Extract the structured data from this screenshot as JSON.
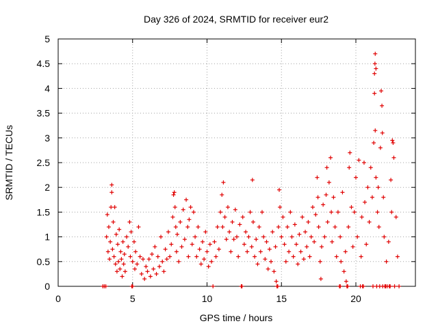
{
  "chart_data": {
    "type": "scatter",
    "title": "Day 326 of 2024, SRMTID for receiver eur2",
    "xlabel": "GPS time / hours",
    "ylabel": "SRMTID / TECUs",
    "xlim": [
      0,
      24
    ],
    "ylim": [
      0,
      5
    ],
    "xticks": [
      0,
      5,
      10,
      15,
      20
    ],
    "xtick_labels": [
      "0",
      "5",
      "10",
      "15",
      "20"
    ],
    "yticks": [
      0,
      0.5,
      1,
      1.5,
      2,
      2.5,
      3,
      3.5,
      4,
      4.5,
      5
    ],
    "ytick_labels": [
      "0",
      "0.5",
      "1",
      "1.5",
      "2",
      "2.5",
      "3",
      "3.5",
      "4",
      "4.5",
      "5"
    ],
    "grid": true,
    "marker": "+",
    "series": [
      {
        "name": "SRMTID",
        "color": "#e00000",
        "points": [
          [
            3.2,
            0.0
          ],
          [
            3.25,
            1.0
          ],
          [
            3.3,
            1.45
          ],
          [
            3.35,
            0.7
          ],
          [
            3.4,
            1.2
          ],
          [
            3.45,
            0.55
          ],
          [
            3.5,
            0.9
          ],
          [
            3.55,
            1.6
          ],
          [
            3.6,
            2.05
          ],
          [
            3.6,
            1.9
          ],
          [
            3.65,
            0.75
          ],
          [
            3.7,
            1.3
          ],
          [
            3.75,
            0.6
          ],
          [
            3.8,
            1.6
          ],
          [
            3.85,
            0.45
          ],
          [
            3.9,
            1.05
          ],
          [
            3.95,
            0.3
          ],
          [
            4.0,
            0.85
          ],
          [
            4.05,
            0.5
          ],
          [
            4.1,
            1.15
          ],
          [
            4.15,
            0.35
          ],
          [
            4.2,
            0.7
          ],
          [
            4.25,
            0.55
          ],
          [
            4.3,
            0.2
          ],
          [
            4.35,
            0.9
          ],
          [
            4.4,
            0.45
          ],
          [
            4.45,
            0.65
          ],
          [
            4.5,
            0.3
          ],
          [
            4.6,
            1.0
          ],
          [
            4.7,
            0.8
          ],
          [
            4.8,
            1.3
          ],
          [
            4.85,
            0.6
          ],
          [
            4.9,
            1.1
          ],
          [
            5.0,
            0.0
          ],
          [
            5.0,
            0.5
          ],
          [
            5.1,
            0.9
          ],
          [
            5.15,
            0.35
          ],
          [
            5.2,
            0.7
          ],
          [
            5.3,
            0.45
          ],
          [
            5.4,
            1.2
          ],
          [
            5.5,
            0.6
          ],
          [
            5.6,
            0.25
          ],
          [
            5.7,
            0.55
          ],
          [
            5.8,
            0.15
          ],
          [
            5.9,
            0.4
          ],
          [
            6.0,
            0.3
          ],
          [
            6.1,
            0.55
          ],
          [
            6.2,
            0.2
          ],
          [
            6.3,
            0.65
          ],
          [
            6.4,
            0.35
          ],
          [
            6.5,
            0.8
          ],
          [
            6.6,
            0.25
          ],
          [
            6.7,
            0.6
          ],
          [
            6.8,
            0.4
          ],
          [
            6.9,
            1.0
          ],
          [
            7.0,
            0.5
          ],
          [
            7.1,
            0.3
          ],
          [
            7.2,
            0.75
          ],
          [
            7.3,
            0.55
          ],
          [
            7.4,
            1.1
          ],
          [
            7.5,
            0.6
          ],
          [
            7.6,
            0.85
          ],
          [
            7.7,
            1.4
          ],
          [
            7.75,
            1.85
          ],
          [
            7.8,
            1.9
          ],
          [
            7.85,
            1.6
          ],
          [
            7.9,
            1.2
          ],
          [
            7.95,
            0.7
          ],
          [
            8.0,
            1.05
          ],
          [
            8.1,
            0.5
          ],
          [
            8.2,
            1.3
          ],
          [
            8.3,
            0.8
          ],
          [
            8.4,
            1.55
          ],
          [
            8.5,
            0.95
          ],
          [
            8.6,
            1.75
          ],
          [
            8.7,
            1.2
          ],
          [
            8.75,
            0.6
          ],
          [
            8.8,
            1.35
          ],
          [
            8.9,
            1.6
          ],
          [
            9.0,
            0.85
          ],
          [
            9.1,
            1.5
          ],
          [
            9.2,
            1.0
          ],
          [
            9.3,
            0.6
          ],
          [
            9.4,
            1.2
          ],
          [
            9.5,
            0.75
          ],
          [
            9.6,
            0.45
          ],
          [
            9.7,
            0.9
          ],
          [
            9.8,
            0.55
          ],
          [
            9.9,
            1.1
          ],
          [
            10.0,
            0.7
          ],
          [
            10.1,
            0.4
          ],
          [
            10.2,
            0.85
          ],
          [
            10.3,
            0.5
          ],
          [
            10.4,
            0.0
          ],
          [
            10.5,
            0.9
          ],
          [
            10.6,
            0.6
          ],
          [
            10.7,
            1.2
          ],
          [
            10.8,
            0.75
          ],
          [
            10.9,
            1.5
          ],
          [
            11.0,
            1.85
          ],
          [
            11.05,
            1.2
          ],
          [
            11.1,
            2.1
          ],
          [
            11.2,
            1.4
          ],
          [
            11.3,
            0.95
          ],
          [
            11.4,
            1.6
          ],
          [
            11.5,
            1.1
          ],
          [
            11.6,
            0.7
          ],
          [
            11.7,
            1.3
          ],
          [
            11.8,
            0.95
          ],
          [
            11.9,
            1.55
          ],
          [
            12.0,
            1.0
          ],
          [
            12.1,
            0.6
          ],
          [
            12.2,
            1.25
          ],
          [
            12.3,
            0.0
          ],
          [
            12.4,
            1.4
          ],
          [
            12.5,
            0.85
          ],
          [
            12.6,
            1.1
          ],
          [
            12.7,
            0.7
          ],
          [
            12.8,
            1.0
          ],
          [
            12.9,
            1.5
          ],
          [
            13.0,
            0.8
          ],
          [
            13.05,
            2.15
          ],
          [
            13.1,
            1.3
          ],
          [
            13.2,
            0.6
          ],
          [
            13.3,
            0.95
          ],
          [
            13.4,
            0.45
          ],
          [
            13.5,
            1.2
          ],
          [
            13.6,
            0.7
          ],
          [
            13.7,
            1.5
          ],
          [
            13.8,
            1.0
          ],
          [
            13.9,
            0.55
          ],
          [
            14.0,
            0.9
          ],
          [
            14.1,
            0.35
          ],
          [
            14.2,
            0.75
          ],
          [
            14.3,
            0.5
          ],
          [
            14.4,
            1.1
          ],
          [
            14.5,
            0.3
          ],
          [
            14.6,
            0.8
          ],
          [
            14.65,
            0.1
          ],
          [
            14.7,
            0.0
          ],
          [
            14.8,
            1.2
          ],
          [
            14.85,
            1.95
          ],
          [
            14.9,
            1.6
          ],
          [
            15.0,
            1.0
          ],
          [
            15.1,
            1.4
          ],
          [
            15.2,
            0.85
          ],
          [
            15.3,
            0.5
          ],
          [
            15.4,
            1.2
          ],
          [
            15.5,
            0.7
          ],
          [
            15.6,
            1.5
          ],
          [
            15.7,
            1.0
          ],
          [
            15.8,
            0.6
          ],
          [
            15.9,
            1.25
          ],
          [
            16.0,
            0.85
          ],
          [
            16.1,
            0.45
          ],
          [
            16.2,
            1.05
          ],
          [
            16.3,
            0.7
          ],
          [
            16.4,
            1.4
          ],
          [
            16.5,
            0.55
          ],
          [
            16.6,
            1.1
          ],
          [
            16.7,
            0.8
          ],
          [
            16.8,
            1.3
          ],
          [
            16.9,
            0.6
          ],
          [
            17.0,
            1.0
          ],
          [
            17.1,
            1.6
          ],
          [
            17.2,
            0.9
          ],
          [
            17.3,
            1.45
          ],
          [
            17.4,
            2.2
          ],
          [
            17.45,
            1.8
          ],
          [
            17.5,
            1.2
          ],
          [
            17.6,
            0.5
          ],
          [
            17.65,
            0.15
          ],
          [
            17.7,
            0.8
          ],
          [
            17.8,
            1.65
          ],
          [
            17.9,
            1.0
          ],
          [
            18.0,
            1.85
          ],
          [
            18.05,
            2.4
          ],
          [
            18.1,
            1.3
          ],
          [
            18.2,
            2.1
          ],
          [
            18.3,
            2.6
          ],
          [
            18.35,
            1.5
          ],
          [
            18.4,
            0.9
          ],
          [
            18.5,
            1.8
          ],
          [
            18.6,
            1.2
          ],
          [
            18.7,
            0.6
          ],
          [
            18.8,
            1.5
          ],
          [
            18.9,
            0.0
          ],
          [
            18.95,
            1.0
          ],
          [
            19.0,
            0.5
          ],
          [
            19.1,
            1.9
          ],
          [
            19.2,
            0.3
          ],
          [
            19.3,
            0.7
          ],
          [
            19.35,
            0.1
          ],
          [
            19.4,
            0.0
          ],
          [
            19.5,
            1.2
          ],
          [
            19.55,
            2.4
          ],
          [
            19.6,
            2.7
          ],
          [
            19.7,
            1.6
          ],
          [
            19.8,
            0.8
          ],
          [
            19.9,
            1.5
          ],
          [
            20.0,
            2.2
          ],
          [
            20.1,
            1.0
          ],
          [
            20.2,
            2.55
          ],
          [
            20.3,
            0.0
          ],
          [
            20.35,
            0.6
          ],
          [
            20.4,
            1.4
          ],
          [
            20.5,
            0.0
          ],
          [
            20.55,
            2.5
          ],
          [
            20.6,
            1.7
          ],
          [
            20.7,
            0.85
          ],
          [
            20.8,
            2.0
          ],
          [
            20.9,
            1.3
          ],
          [
            21.0,
            2.4
          ],
          [
            21.1,
            1.8
          ],
          [
            21.2,
            2.9
          ],
          [
            21.25,
            4.3
          ],
          [
            21.28,
            4.5
          ],
          [
            21.3,
            4.7
          ],
          [
            21.35,
            4.4
          ],
          [
            21.25,
            3.9
          ],
          [
            21.3,
            3.15
          ],
          [
            21.35,
            2.2
          ],
          [
            21.4,
            0.0
          ],
          [
            21.45,
            1.5
          ],
          [
            21.5,
            2.0
          ],
          [
            21.55,
            1.2
          ],
          [
            21.6,
            0.0
          ],
          [
            21.65,
            2.8
          ],
          [
            21.7,
            3.95
          ],
          [
            21.75,
            3.65
          ],
          [
            21.78,
            3.1
          ],
          [
            21.8,
            0.0
          ],
          [
            21.85,
            1.8
          ],
          [
            21.9,
            1.0
          ],
          [
            22.0,
            0.0
          ],
          [
            22.05,
            0.5
          ],
          [
            22.1,
            0.0
          ],
          [
            22.2,
            0.9
          ],
          [
            22.3,
            0.0
          ],
          [
            22.35,
            2.15
          ],
          [
            22.4,
            1.5
          ],
          [
            22.45,
            2.95
          ],
          [
            22.5,
            2.9
          ],
          [
            22.55,
            2.6
          ],
          [
            22.6,
            0.0
          ],
          [
            22.7,
            1.4
          ],
          [
            22.8,
            0.6
          ],
          [
            22.9,
            0.0
          ],
          [
            3.0,
            0.0
          ],
          [
            3.1,
            0.0
          ],
          [
            4.95,
            0.0
          ],
          [
            12.35,
            0.0
          ],
          [
            14.75,
            0.0
          ],
          [
            18.95,
            0.0
          ],
          [
            19.45,
            0.0
          ],
          [
            20.45,
            0.0
          ],
          [
            21.15,
            0.0
          ],
          [
            21.95,
            0.0
          ],
          [
            22.25,
            0.0
          ]
        ]
      }
    ]
  }
}
